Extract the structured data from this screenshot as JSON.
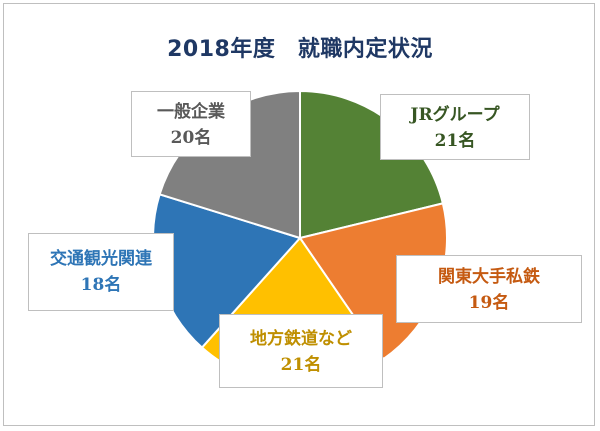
{
  "chart_data": {
    "type": "pie",
    "title": "2018年度　就職内定状況",
    "slices": [
      {
        "name": "JRグループ",
        "value_label": "21名",
        "value": 21,
        "color": "#548235"
      },
      {
        "name": "関東大手私鉄",
        "value_label": "19名",
        "value": 19,
        "color": "#ed7d31"
      },
      {
        "name": "地方鉄道など",
        "value_label": "21名",
        "value": 21,
        "color": "#ffc000"
      },
      {
        "name": "交通観光関連",
        "value_label": "18名",
        "value": 18,
        "color": "#2e75b6"
      },
      {
        "name": "一般企業",
        "value_label": "20名",
        "value": 20,
        "color": "#808080"
      }
    ],
    "label_text_colors": [
      "#375623",
      "#c55a11",
      "#bf8f00",
      "#2e75b6",
      "#595959"
    ]
  }
}
